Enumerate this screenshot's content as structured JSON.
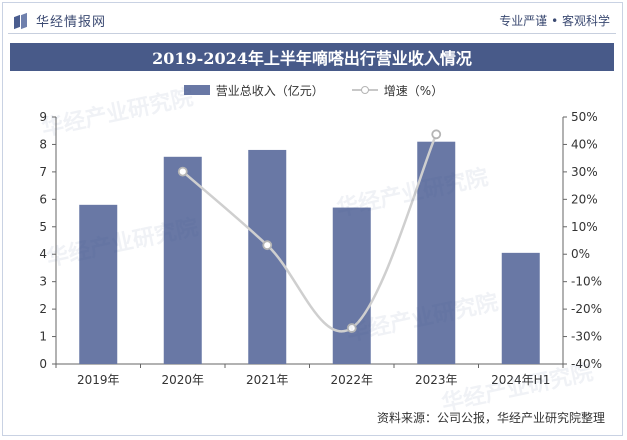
{
  "header": {
    "brand": "华经情报网",
    "slogan": "专业严谨 • 客观科学"
  },
  "title": "2019-2024年上半年嘀嗒出行营业收入情况",
  "source": "资料来源：公司公报，华经产业研究院整理",
  "watermark": "华经产业研究院",
  "colors": {
    "bar": "#6978a5",
    "line": "#cfcfcf",
    "marker_stroke": "#b5b5b5",
    "title_bg": "#485a89"
  },
  "chart_data": {
    "type": "bar",
    "categories": [
      "2019年",
      "2020年",
      "2021年",
      "2022年",
      "2023年",
      "2024年H1"
    ],
    "series": [
      {
        "name": "营业总收入（亿元）",
        "type": "bar",
        "axis": "left",
        "values": [
          5.8,
          7.55,
          7.8,
          5.7,
          8.1,
          4.05
        ]
      },
      {
        "name": "增速（%）",
        "type": "line",
        "axis": "right",
        "values": [
          null,
          30.1,
          3.3,
          -26.9,
          43.7,
          null
        ]
      }
    ],
    "y_left": {
      "min": 0,
      "max": 9,
      "ticks": [
        "0",
        "1",
        "2",
        "3",
        "4",
        "5",
        "6",
        "7",
        "8",
        "9"
      ]
    },
    "y_right": {
      "min": -40,
      "max": 50,
      "ticks": [
        "-40%",
        "-30%",
        "-20%",
        "-10%",
        "0%",
        "10%",
        "20%",
        "30%",
        "40%",
        "50%"
      ]
    },
    "legend_position": "top-center",
    "grid": false
  }
}
